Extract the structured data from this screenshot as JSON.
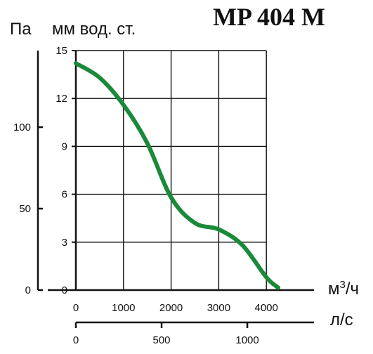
{
  "chart_data": {
    "type": "line",
    "title": "MP 404 M",
    "units": {
      "pa": "Па",
      "mm": "мм вод. ст.",
      "m3h": "м3/ч",
      "ls": "л/с"
    },
    "x_m3h": {
      "ticks": [
        "0",
        "1000",
        "2000",
        "3000",
        "4000"
      ],
      "range": [
        0,
        5000
      ],
      "grid_max": 4000
    },
    "x_ls": {
      "ticks": [
        "0",
        "500",
        "1000"
      ],
      "range": [
        0,
        1389
      ]
    },
    "y_mm": {
      "ticks": [
        "0",
        "3",
        "6",
        "9",
        "12",
        "15"
      ],
      "range": [
        0,
        15
      ]
    },
    "y_pa": {
      "ticks": [
        "0",
        "50",
        "100"
      ],
      "range": [
        0,
        147
      ]
    },
    "grid": true,
    "series": [
      {
        "color": "#1a8a3a",
        "x": [
          0,
          500,
          1000,
          1500,
          2000,
          2500,
          3000,
          3500,
          4000,
          4250
        ],
        "y": [
          14.2,
          13.3,
          11.6,
          9.2,
          5.8,
          4.2,
          3.8,
          2.8,
          0.8,
          0.15
        ]
      }
    ]
  }
}
